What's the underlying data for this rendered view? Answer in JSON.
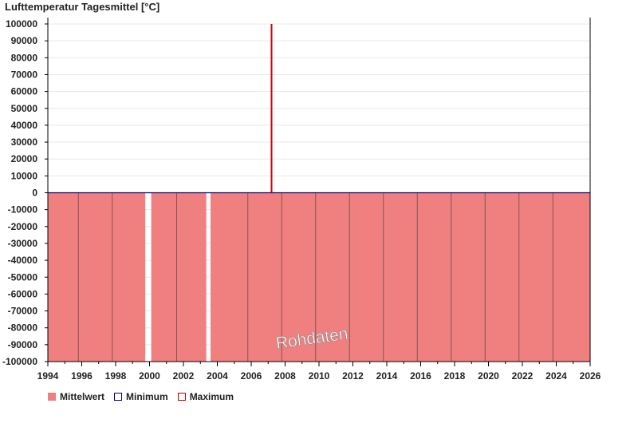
{
  "chart_data": {
    "type": "bar",
    "title": "Lufttemperatur Tagesmittel [°C]",
    "watermark": "Rohdaten",
    "ylim": [
      -100000,
      100000
    ],
    "yticks": [
      100000,
      90000,
      80000,
      70000,
      60000,
      50000,
      40000,
      30000,
      20000,
      10000,
      0,
      -10000,
      -20000,
      -30000,
      -40000,
      -50000,
      -60000,
      -70000,
      -80000,
      -90000,
      -100000
    ],
    "xlim": [
      1994,
      2026
    ],
    "xticks": [
      1994,
      1996,
      1998,
      2000,
      2002,
      2004,
      2006,
      2008,
      2010,
      2012,
      2014,
      2016,
      2018,
      2020,
      2022,
      2024,
      2026
    ],
    "grid": true,
    "legend_position": "bottom-left",
    "series": [
      {
        "name": "Mittelwert",
        "color": "#f08080",
        "periods": [
          {
            "start": 1994.0,
            "end": 1999.75,
            "value": -100000
          },
          {
            "start": 2000.1,
            "end": 2003.35,
            "value": -100000
          },
          {
            "start": 2003.6,
            "end": 2026.0,
            "value": -100000
          }
        ]
      },
      {
        "name": "Minimum",
        "color": "#000080"
      },
      {
        "name": "Maximum",
        "color": "#cc0000",
        "spikes": [
          {
            "x": 2007.2,
            "value": 100000
          }
        ]
      }
    ],
    "dividers": [
      1995.8,
      1997.8,
      2001.6,
      2005.8,
      2007.8,
      2009.8,
      2011.8,
      2013.8,
      2015.8,
      2017.8,
      2019.8,
      2021.8,
      2023.8
    ]
  }
}
